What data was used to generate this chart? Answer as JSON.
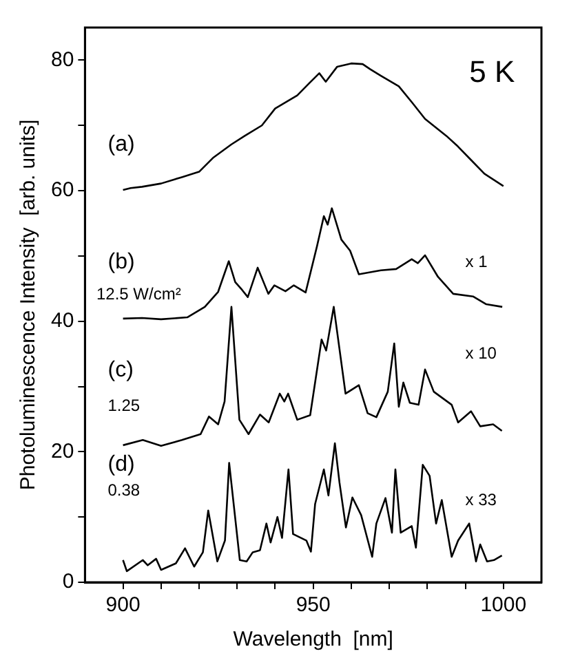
{
  "chart_data": {
    "type": "line",
    "xlabel": "Wavelength  [nm]",
    "ylabel": "Photoluminescence Intensity  [arb. units]",
    "xlim": [
      890,
      1010
    ],
    "xticks": [
      {
        "value": 900,
        "label": "900"
      },
      {
        "value": 910,
        "label": null
      },
      {
        "value": 920,
        "label": null
      },
      {
        "value": 930,
        "label": null
      },
      {
        "value": 940,
        "label": null
      },
      950,
      {
        "value": 960,
        "label": null
      },
      {
        "value": 970,
        "label": null
      },
      {
        "value": 980,
        "label": null
      },
      {
        "value": 990,
        "label": null
      },
      1000
    ],
    "ylim": [
      0,
      85
    ],
    "yticks": [
      0,
      {
        "value": 10,
        "label": null
      },
      20,
      {
        "value": 30,
        "label": null
      },
      40,
      {
        "value": 50,
        "label": null
      },
      60,
      {
        "value": 70,
        "label": null
      },
      80
    ],
    "grid": false,
    "legend": false,
    "marker": "none",
    "line_style": "solid",
    "annotations": [
      "5 K",
      "(a)",
      "(b)",
      "12.5 W/cm²",
      "x 1",
      "(c)",
      "1.25",
      "x 10",
      "(d)",
      "0.38",
      "x 33"
    ],
    "series": [
      {
        "color": "#000000",
        "x": [
          900,
          902,
          905,
          910,
          915.6,
          920,
          923.8,
          928.5,
          932,
          936.5,
          940,
          945.8,
          949,
          951.6,
          953.3,
          956.3,
          960,
          963,
          965,
          967.8,
          972.5,
          976,
          979.4,
          985,
          988,
          991.5,
          995,
          1000
        ],
        "values": [
          60.1,
          60.4,
          60.6,
          61.1,
          62.1,
          62.9,
          65.1,
          67.1,
          68.4,
          70,
          72.6,
          74.6,
          76.5,
          78,
          76.7,
          79,
          79.5,
          79.4,
          78.6,
          77.6,
          76,
          73.5,
          71,
          68.4,
          66.8,
          64.7,
          62.6,
          60.7
        ]
      },
      {
        "color": "#000000",
        "x": [
          900,
          905,
          910,
          916.9,
          921.5,
          925,
          927.8,
          929.5,
          931.3,
          932.8,
          935.4,
          938.2,
          939.8,
          942.7,
          944.9,
          948,
          951,
          952.8,
          953.8,
          954.9,
          957.4,
          959.7,
          962,
          965,
          967.8,
          971.8,
          975.9,
          977.5,
          979.4,
          982.8,
          986.8,
          992,
          995.5,
          999.7
        ],
        "values": [
          40.4,
          40.5,
          40.3,
          40.6,
          42.2,
          44.5,
          49.2,
          46,
          44.8,
          43.7,
          48.2,
          44.2,
          45.5,
          44.6,
          45.5,
          44.4,
          51.5,
          56.1,
          54.8,
          57.3,
          52.5,
          50.8,
          47.2,
          47.5,
          47.8,
          48,
          49.5,
          48.9,
          50.1,
          46.8,
          44.2,
          43.8,
          42.6,
          42.2
        ]
      },
      {
        "color": "#000000",
        "x": [
          900,
          905.2,
          910,
          915.5,
          920.4,
          922.6,
          925,
          926.7,
          928.5,
          930.6,
          933,
          936,
          938.3,
          941.2,
          942.4,
          943.4,
          945.8,
          949.2,
          952.2,
          953.4,
          955.4,
          958.5,
          962,
          964.3,
          966.6,
          969.6,
          971.3,
          972.5,
          973.7,
          975.4,
          977.7,
          979.4,
          981.7,
          986.4,
          988.1,
          991.5,
          993.9,
          997.3,
          999.6
        ],
        "values": [
          21,
          21.8,
          20.9,
          21.8,
          22.7,
          25.4,
          24.2,
          27.7,
          42.2,
          24.9,
          22.7,
          25.7,
          24.5,
          28.9,
          27.7,
          28.9,
          24.9,
          25.6,
          37.2,
          35.5,
          42.2,
          28.9,
          30.2,
          25.9,
          25.3,
          29.2,
          36.6,
          26.9,
          30.6,
          27.5,
          27.2,
          32.6,
          29.2,
          27.2,
          24.5,
          26.2,
          23.9,
          24.2,
          23.2
        ]
      },
      {
        "color": "#000000",
        "x": [
          900,
          901,
          905.2,
          906.5,
          908.7,
          910,
          913.9,
          916.3,
          918.7,
          921,
          922.4,
          924.8,
          926.8,
          927.9,
          930.7,
          932.5,
          934.1,
          936,
          937.7,
          938.8,
          940.6,
          941.8,
          943.5,
          944.7,
          948.2,
          949.4,
          950.5,
          952.8,
          954,
          955.7,
          956.9,
          958.6,
          960.3,
          962.6,
          965.5,
          966.6,
          969,
          970.7,
          971.6,
          973,
          975.9,
          977,
          978.8,
          980.6,
          982.3,
          983.8,
          986.4,
          988.1,
          991,
          992.8,
          993.9,
          995.7,
          997.5,
          999.6
        ],
        "values": [
          3.4,
          1.7,
          3.4,
          2.6,
          3.6,
          1.9,
          2.9,
          5.2,
          2.4,
          4.6,
          11,
          3.2,
          6.4,
          18.3,
          3.4,
          3.2,
          4.6,
          4.9,
          9,
          6.1,
          10,
          6.8,
          17.3,
          7.4,
          6.4,
          4.7,
          12,
          17.3,
          13.3,
          21.3,
          15.3,
          8.4,
          13,
          10.3,
          3.9,
          9,
          12.9,
          7.6,
          17.3,
          7.6,
          8.6,
          5.3,
          18,
          16.3,
          9,
          12.6,
          3.9,
          6.4,
          9,
          3.2,
          5.8,
          3.2,
          3.4,
          4.1
        ]
      }
    ]
  }
}
